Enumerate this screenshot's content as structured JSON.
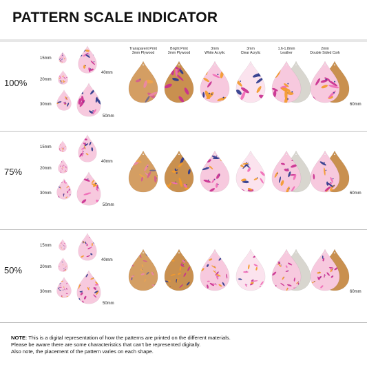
{
  "title": "PATTERN SCALE INDICATOR",
  "materials": [
    {
      "line1": "Transparent Print",
      "line2": "3mm Plywood"
    },
    {
      "line1": "Bright Print",
      "line2": "3mm Plywood"
    },
    {
      "line1": "3mm",
      "line2": "White Acrylic"
    },
    {
      "line1": "3mm",
      "line2": "Clear Acrylic"
    },
    {
      "line1": "1.6-1.8mm",
      "line2": "Leather"
    },
    {
      "line1": "2mm",
      "line2": "Double Sided Cork"
    }
  ],
  "rows": [
    {
      "label": "100%",
      "sizes": {
        "s15": "15mm",
        "s20": "20mm",
        "s30": "30mm",
        "s40": "40mm",
        "s50": "50mm",
        "s60": "60mm"
      }
    },
    {
      "label": "75%",
      "sizes": {
        "s15": "15mm",
        "s20": "20mm",
        "s30": "30mm",
        "s40": "40mm",
        "s50": "50mm",
        "s60": "60mm"
      }
    },
    {
      "label": "50%",
      "sizes": {
        "s15": "15mm",
        "s20": "20mm",
        "s30": "30mm",
        "s40": "40mm",
        "s50": "50mm",
        "s60": "60mm"
      }
    }
  ],
  "note": {
    "prefix": "NOTE",
    "line1": ": This is a digital representation of how the patterns are printed on the different materials.",
    "line2": "Please be aware there are some characteristics that can't be represented digitally.",
    "line3": "Also note, the placement of the pattern varies on each shape."
  },
  "colors": {
    "pink": "#f06bb6",
    "magenta": "#c92f8f",
    "orange": "#f39a2b",
    "navy": "#2d3a8c",
    "cork": "#c9904f",
    "leather": "#d8d6cf",
    "bg_pink": "#f7c9de"
  }
}
